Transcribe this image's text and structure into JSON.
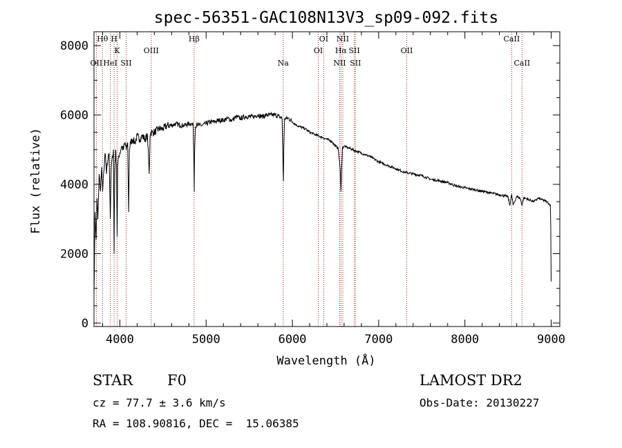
{
  "chart_data": {
    "type": "line",
    "title": "spec-56351-GAC108N13V3_sp09-092.fits",
    "xlabel": "Wavelength (Å)",
    "ylabel": "Flux (relative)",
    "xlim": [
      3700,
      9100
    ],
    "ylim": [
      -100,
      8400
    ],
    "xticks": [
      4000,
      5000,
      6000,
      7000,
      8000,
      9000
    ],
    "yticks": [
      0,
      2000,
      4000,
      6000,
      8000
    ],
    "grid": false,
    "series": [
      {
        "x": [
          3700,
          3712,
          3725,
          3735,
          3745,
          3760,
          3775,
          3790,
          3800,
          3815,
          3830,
          3845,
          3860,
          3875,
          3889,
          3900,
          3915,
          3925,
          3933,
          3940,
          3950,
          3960,
          3968,
          3975,
          3985,
          4000,
          4020,
          4040,
          4060,
          4075,
          4090,
          4102,
          4110,
          4125,
          4150,
          4175,
          4200,
          4230,
          4260,
          4290,
          4320,
          4340,
          4350,
          4360,
          4380,
          4400,
          4450,
          4500,
          4550,
          4600,
          4650,
          4700,
          4750,
          4800,
          4830,
          4850,
          4858,
          4862,
          4866,
          4875,
          4890,
          4920,
          4950,
          5000,
          5050,
          5100,
          5150,
          5200,
          5250,
          5300,
          5350,
          5400,
          5450,
          5500,
          5550,
          5600,
          5650,
          5700,
          5750,
          5800,
          5850,
          5880,
          5890,
          5896,
          5900,
          5910,
          5930,
          5960,
          6000,
          6050,
          6100,
          6150,
          6200,
          6250,
          6300,
          6350,
          6400,
          6450,
          6500,
          6530,
          6555,
          6563,
          6570,
          6580,
          6600,
          6650,
          6700,
          6750,
          6800,
          6900,
          7000,
          7100,
          7200,
          7300,
          7400,
          7500,
          7600,
          7700,
          7800,
          7900,
          8000,
          8100,
          8200,
          8300,
          8400,
          8498,
          8520,
          8542,
          8560,
          8600,
          8640,
          8662,
          8680,
          8700,
          8750,
          8800,
          8850,
          8900,
          8950,
          8990,
          8995,
          9000
        ],
        "y": [
          800,
          3200,
          2400,
          3600,
          3000,
          4300,
          3800,
          4500,
          3800,
          4400,
          4900,
          4300,
          4700,
          4900,
          3000,
          4500,
          4800,
          5000,
          2000,
          4300,
          5000,
          4600,
          2500,
          4500,
          4800,
          4900,
          5100,
          5000,
          5200,
          5000,
          5200,
          3200,
          5000,
          5200,
          5300,
          5200,
          5400,
          5300,
          5400,
          5300,
          5400,
          4300,
          5400,
          5500,
          5500,
          5500,
          5600,
          5600,
          5700,
          5700,
          5750,
          5700,
          5700,
          5750,
          5750,
          5700,
          4700,
          3800,
          4900,
          5650,
          5750,
          5700,
          5700,
          5750,
          5800,
          5800,
          5850,
          5850,
          5900,
          5850,
          5950,
          5900,
          5950,
          5950,
          5950,
          6000,
          5950,
          6000,
          6000,
          6000,
          5950,
          5900,
          4800,
          4100,
          5000,
          5900,
          5900,
          5900,
          5800,
          5700,
          5650,
          5600,
          5500,
          5450,
          5400,
          5350,
          5300,
          5250,
          5100,
          5050,
          4400,
          3800,
          4400,
          5050,
          5100,
          5050,
          5000,
          4950,
          4900,
          4800,
          4650,
          4550,
          4450,
          4350,
          4300,
          4250,
          4150,
          4100,
          4050,
          3950,
          3900,
          3850,
          3800,
          3750,
          3700,
          3650,
          3400,
          3700,
          3400,
          3650,
          3600,
          3400,
          3600,
          3600,
          3550,
          3500,
          3600,
          3550,
          3500,
          3400,
          2800,
          1200
        ]
      }
    ],
    "lines": [
      {
        "label": "Hθ",
        "x": 3798,
        "row": 1
      },
      {
        "label": "OII",
        "x": 3727,
        "row": 3
      },
      {
        "label": "HeI",
        "x": 3889,
        "row": 3
      },
      {
        "label": "H",
        "x": 3933,
        "row": 1
      },
      {
        "label": "K",
        "x": 3968,
        "row": 2
      },
      {
        "label": "SII",
        "x": 4072,
        "row": 3
      },
      {
        "label": "OIII",
        "x": 4363,
        "row": 2
      },
      {
        "label": "Hβ",
        "x": 4861,
        "row": 1
      },
      {
        "label": "Na",
        "x": 5893,
        "row": 3
      },
      {
        "label": "OI",
        "x": 6300,
        "row": 2
      },
      {
        "label": "OI",
        "x": 6363,
        "row": 1
      },
      {
        "label": "NII",
        "x": 6548,
        "row": 3
      },
      {
        "label": "NII",
        "x": 6584,
        "row": 1
      },
      {
        "label": "Hα",
        "x": 6563,
        "row": 2
      },
      {
        "label": "SII",
        "x": 6717,
        "row": 2
      },
      {
        "label": "SII",
        "x": 6731,
        "row": 3
      },
      {
        "label": "OII",
        "x": 7325,
        "row": 2
      },
      {
        "label": "CaII",
        "x": 8542,
        "row": 1
      },
      {
        "label": "CaII",
        "x": 8662,
        "row": 3
      }
    ]
  },
  "info": {
    "object_class": "STAR",
    "subclass": "F0",
    "survey": "LAMOST DR2",
    "redshift": "cz = 77.7 ± 3.6 km/s",
    "obs_date": "Obs-Date: 20130227",
    "coords": "RA = 108.90816, DEC =  15.06385"
  }
}
